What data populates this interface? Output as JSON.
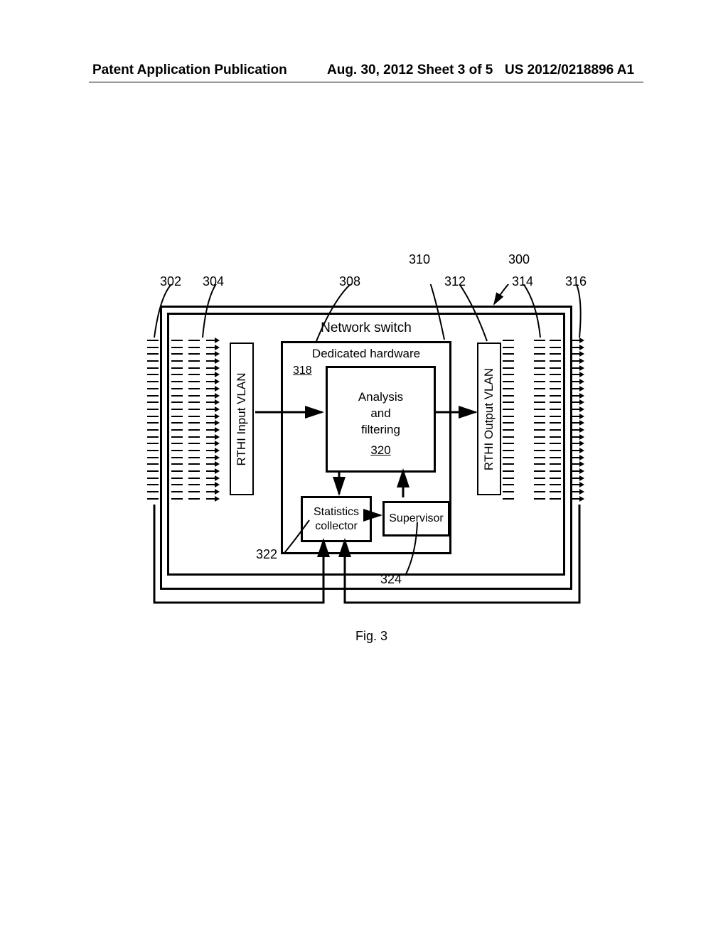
{
  "header": {
    "left": "Patent Application Publication",
    "mid": "Aug. 30, 2012  Sheet 3 of 5",
    "right": "US 2012/0218896 A1"
  },
  "figure_label": "Fig. 3",
  "switch": {
    "title": "Network switch"
  },
  "hardware": {
    "title": "Dedicated hardware",
    "ref": "318",
    "analysis": {
      "lines": [
        "Analysis",
        "and",
        "filtering"
      ],
      "ref": "320"
    },
    "stats": "Statistics collector",
    "supervisor": "Supervisor"
  },
  "vlan": {
    "input": "RTHI Input VLAN",
    "output": "RTHI Output VLAN"
  },
  "callouts": {
    "c300": "300",
    "c302": "302",
    "c304": "304",
    "c308": "308",
    "c310": "310",
    "c312": "312",
    "c314": "314",
    "c316": "316",
    "c322": "322",
    "c324": "324"
  },
  "ports": {
    "tick_count": 24
  }
}
